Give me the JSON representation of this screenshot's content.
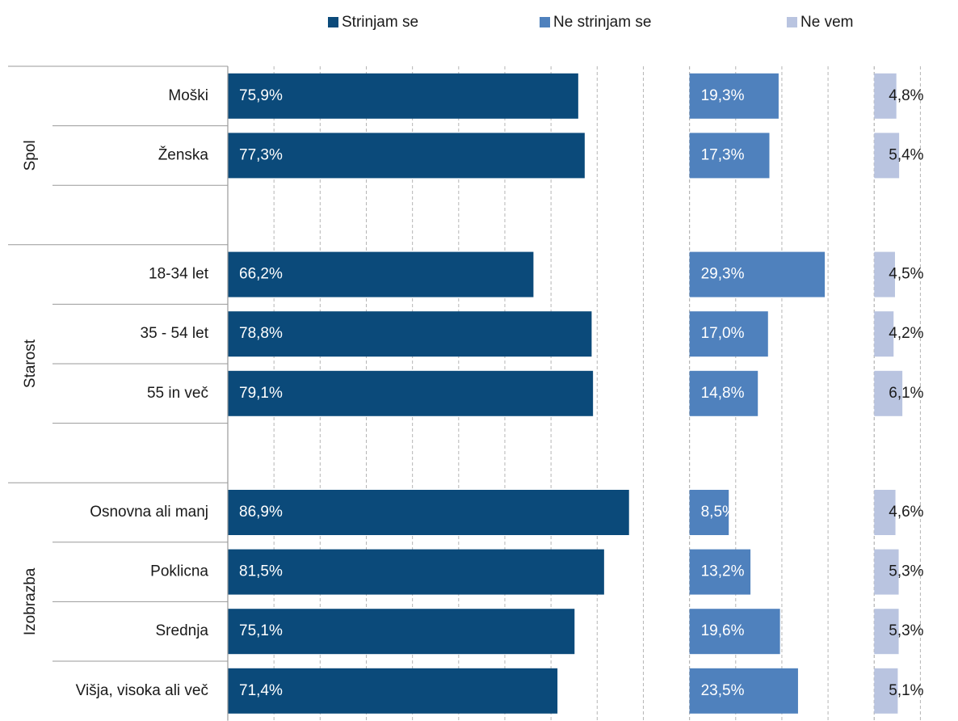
{
  "chart_data": {
    "type": "bar",
    "orientation": "horizontal",
    "groups": [
      {
        "name": "Spol",
        "categories": [
          "Moški",
          "Ženska",
          null
        ]
      },
      {
        "name": "Starost",
        "categories": [
          "18-34 let",
          "35 - 54 let",
          "55 in več",
          null
        ]
      },
      {
        "name": "Izobrazba",
        "categories": [
          "Osnovna ali manj",
          "Poklicna",
          "Srednja",
          "Višja, visoka ali več"
        ]
      }
    ],
    "series": [
      {
        "name": "Strinjam se",
        "color": "#0b4a7a",
        "xlim": [
          0,
          100
        ],
        "xticks": [
          0,
          10,
          20,
          30,
          40,
          50,
          60,
          70,
          80,
          90,
          100
        ],
        "values": [
          75.9,
          77.3,
          null,
          66.2,
          78.8,
          79.1,
          null,
          86.9,
          81.5,
          75.1,
          71.4
        ],
        "value_labels": [
          "75,9%",
          "77,3%",
          null,
          "66,2%",
          "78,8%",
          "79,1%",
          null,
          "86,9%",
          "81,5%",
          "75,1%",
          "71,4%"
        ]
      },
      {
        "name": "Ne strinjam se",
        "color": "#4f81bd",
        "xlim": [
          0,
          40
        ],
        "xticks": [
          0,
          10,
          20,
          30,
          40
        ],
        "values": [
          19.3,
          17.3,
          null,
          29.3,
          17.0,
          14.8,
          null,
          8.5,
          13.2,
          19.6,
          23.5
        ],
        "value_labels": [
          "19,3%",
          "17,3%",
          null,
          "29,3%",
          "17,0%",
          "14,8%",
          null,
          "8,5%",
          "13,2%",
          "19,6%",
          "23,5%"
        ]
      },
      {
        "name": "Ne vem",
        "color": "#b9c4e0",
        "xlim": [
          0,
          15
        ],
        "xticks": [
          0,
          10
        ],
        "values": [
          4.8,
          5.4,
          null,
          4.5,
          4.2,
          6.1,
          null,
          4.6,
          5.3,
          5.3,
          5.1
        ],
        "value_labels": [
          "4,8%",
          "5,4%",
          null,
          "4,5%",
          "4,2%",
          "6,1%",
          null,
          "4,6%",
          "5,3%",
          "5,3%",
          "5,1%"
        ]
      }
    ],
    "grid": true
  }
}
